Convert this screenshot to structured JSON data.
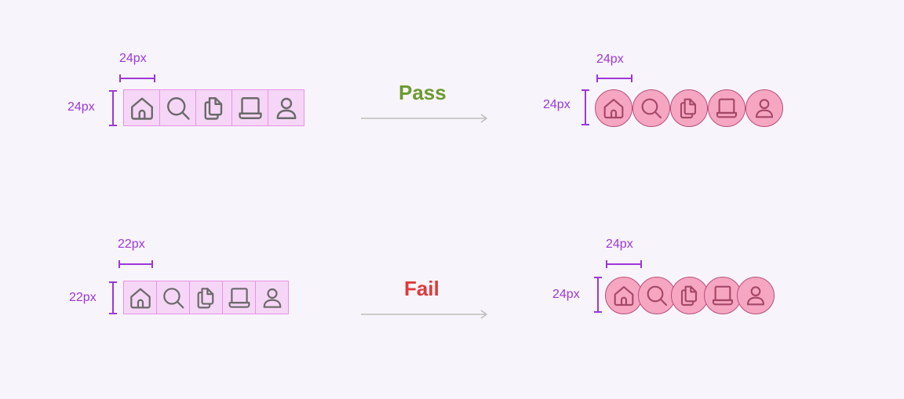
{
  "pass_row": {
    "left_width_label": "24px",
    "left_height_label": "24px",
    "verdict": "Pass",
    "verdict_color": "#6b9a2f",
    "right_width_label": "24px",
    "right_height_label": "24px"
  },
  "fail_row": {
    "left_width_label": "22px",
    "left_height_label": "22px",
    "verdict": "Fail",
    "verdict_color": "#e03a3a",
    "right_width_label": "24px",
    "right_height_label": "24px"
  },
  "icons": [
    "home-icon",
    "search-icon",
    "documents-icon",
    "laptop-icon",
    "user-icon"
  ],
  "colors": {
    "measure": "#9b38d8",
    "icon_box_fill": "#f6d6f6",
    "target_fill": "#f7a6c2"
  }
}
